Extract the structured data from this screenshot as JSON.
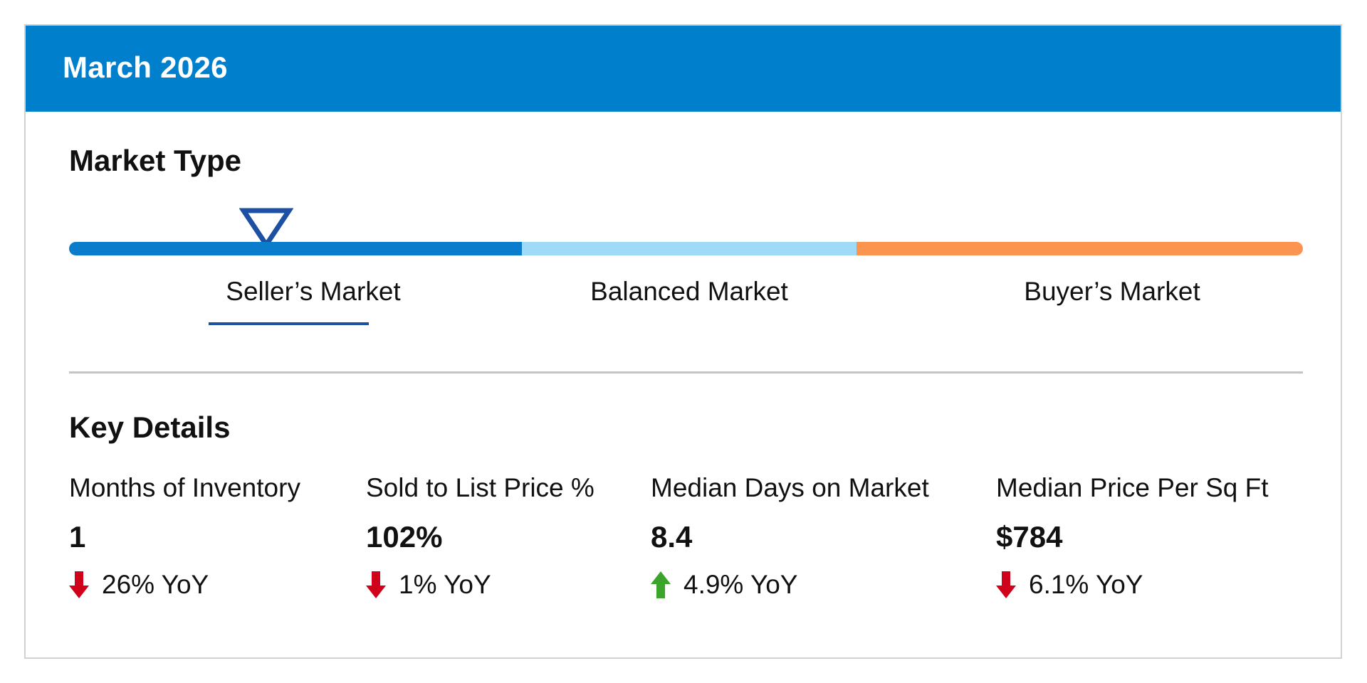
{
  "header": {
    "title": "March 2026",
    "bg_color": "#0080cc"
  },
  "market_type": {
    "title": "Market Type",
    "selected": "Seller’s Market",
    "segments": [
      {
        "label": "Seller’s Market",
        "color": "#0a7ccc"
      },
      {
        "label": "Balanced Market",
        "color": "#9fdaf7"
      },
      {
        "label": "Buyer’s Market",
        "color": "#fb944f"
      }
    ]
  },
  "key_details": {
    "title": "Key Details",
    "metrics": [
      {
        "label": "Months of Inventory",
        "value": "1",
        "change": "26% YoY",
        "direction": "down",
        "direction_color": "#d0021b"
      },
      {
        "label": "Sold to List Price %",
        "value": "102%",
        "change": "1% YoY",
        "direction": "down",
        "direction_color": "#d0021b"
      },
      {
        "label": "Median Days on Market",
        "value": "8.4",
        "change": "4.9% YoY",
        "direction": "up",
        "direction_color": "#3aa52a"
      },
      {
        "label": "Median Price Per Sq Ft",
        "value": "$784",
        "change": "6.1% YoY",
        "direction": "down",
        "direction_color": "#d0021b"
      }
    ]
  }
}
